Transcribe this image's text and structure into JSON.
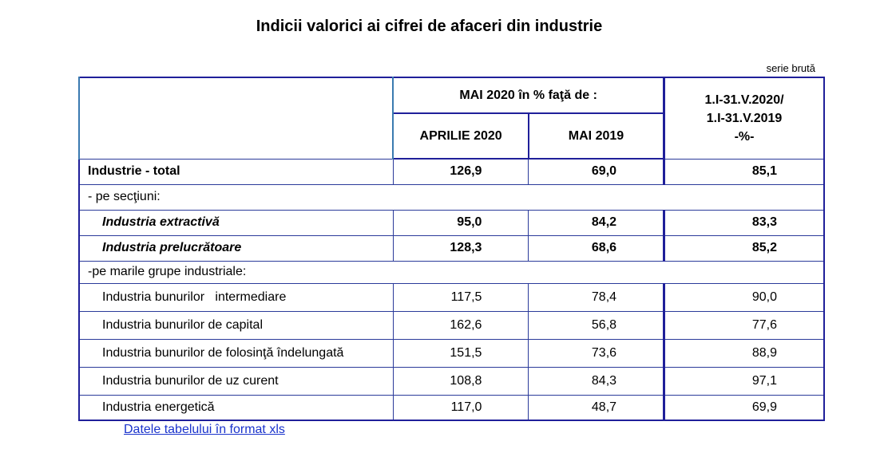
{
  "title": "Indicii valorici ai cifrei de afaceri din industrie",
  "series_note": "serie brută",
  "header": {
    "group": "MAI 2020 în % faţă de :",
    "col1": "APRILIE 2020",
    "col2": "MAI 2019",
    "col3_line1": "1.I-31.V.2020/",
    "col3_line2": "1.I-31.V.2019",
    "col3_line3": "-%-"
  },
  "rows": [
    {
      "label": "Industrie - total",
      "v1": "126,9",
      "v2": "69,0",
      "v3": "85,1"
    },
    {
      "label": "- pe secţiuni:"
    },
    {
      "label": "Industria extractivă",
      "v1": "95,0",
      "v2": "84,2",
      "v3": "83,3"
    },
    {
      "label": "Industria prelucrătoare",
      "v1": "128,3",
      "v2": "68,6",
      "v3": "85,2"
    },
    {
      "label": "-pe marile grupe industriale:"
    },
    {
      "label": "Industria bunurilor   intermediare",
      "v1": "117,5",
      "v2": "78,4",
      "v3": "90,0"
    },
    {
      "label": "Industria bunurilor de capital",
      "v1": "162,6",
      "v2": "56,8",
      "v3": "77,6"
    },
    {
      "label": "Industria bunurilor de folosinţă îndelungată",
      "v1": "151,5",
      "v2": "73,6",
      "v3": "88,9"
    },
    {
      "label": "Industria bunurilor de uz curent",
      "v1": "108,8",
      "v2": "84,3",
      "v3": "97,1"
    },
    {
      "label": "Industria energetică",
      "v1": "117,0",
      "v2": "48,7",
      "v3": "69,9"
    }
  ],
  "link_text": "Datele tabelului în format xls"
}
